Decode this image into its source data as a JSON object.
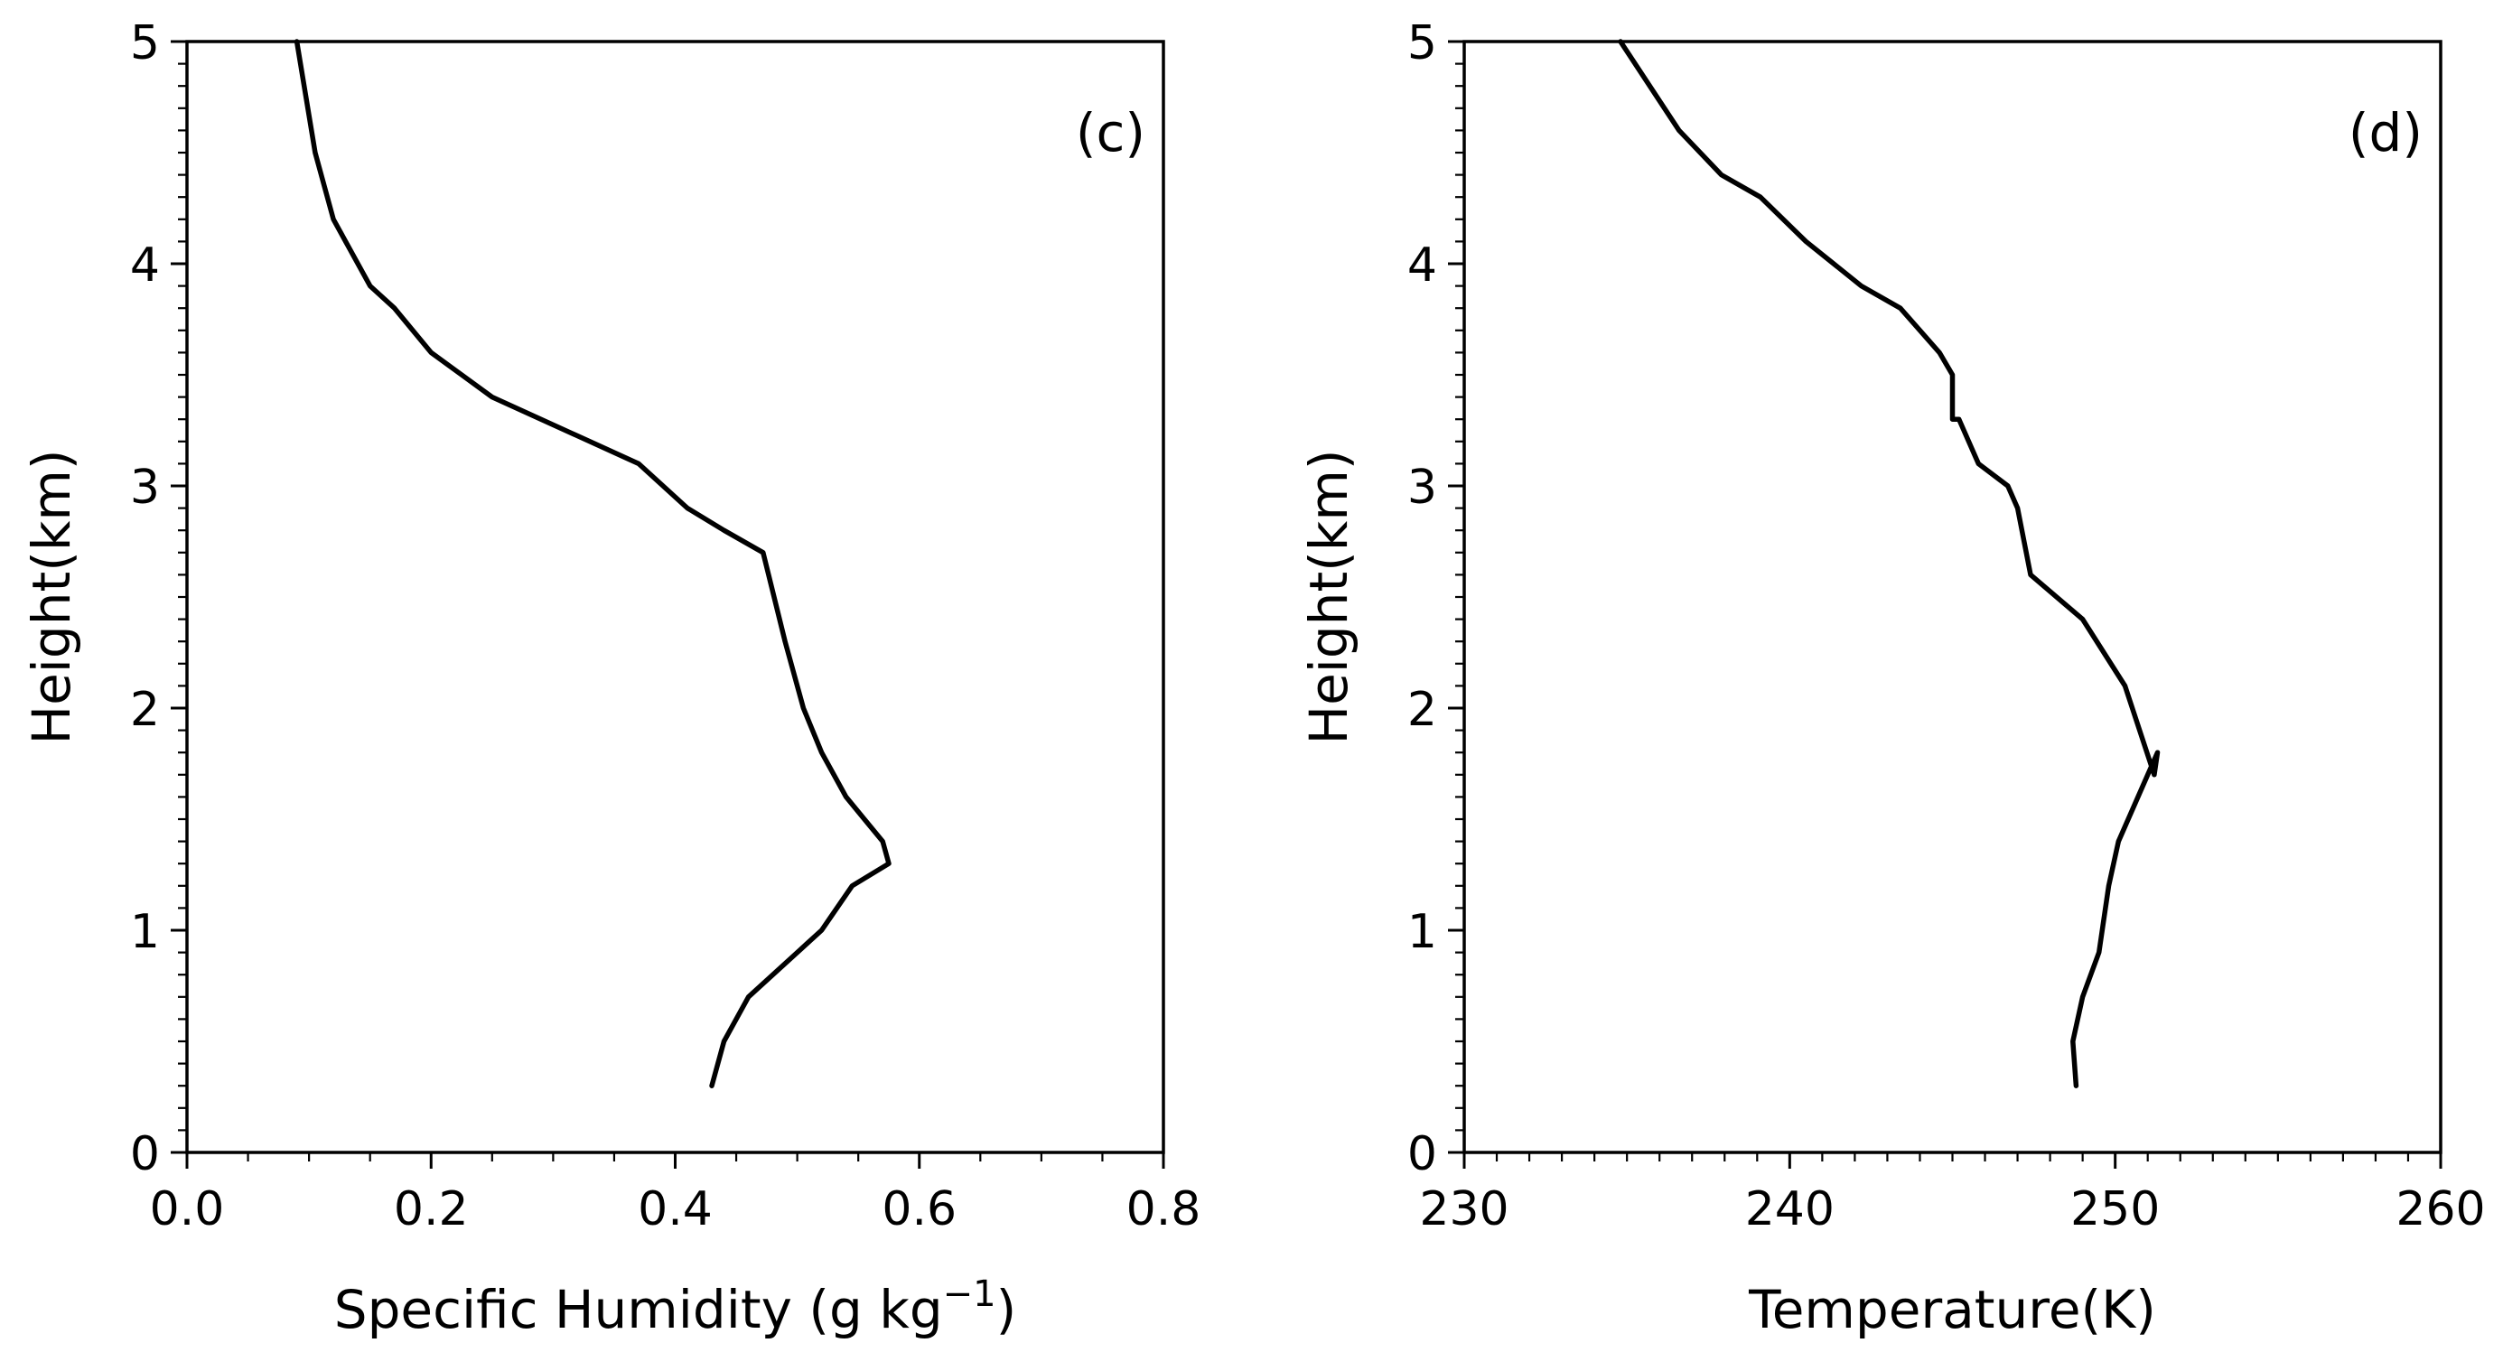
{
  "chart_data": [
    {
      "type": "line",
      "panel_label": "(c)",
      "xlabel": "Specific Humidity (g kg",
      "xlabel_sup": "−1",
      "xlabel_end": ")",
      "ylabel": "Height(km)",
      "xlim": [
        0.0,
        0.8
      ],
      "ylim": [
        0,
        5
      ],
      "x_major_ticks": [
        0.0,
        0.2,
        0.4,
        0.6,
        0.8
      ],
      "x_major_tick_labels": [
        "0.0",
        "0.2",
        "0.4",
        "0.6",
        "0.8"
      ],
      "x_minor_step": 0.05,
      "y_major_ticks": [
        0,
        1,
        2,
        3,
        4,
        5
      ],
      "y_major_tick_labels": [
        "0",
        "1",
        "2",
        "3",
        "4",
        "5"
      ],
      "y_minor_step": 0.1,
      "series": [
        {
          "name": "specific_humidity",
          "x": [
            0.43,
            0.44,
            0.46,
            0.5,
            0.52,
            0.545,
            0.575,
            0.57,
            0.555,
            0.54,
            0.52,
            0.505,
            0.49,
            0.472,
            0.44,
            0.41,
            0.37,
            0.33,
            0.29,
            0.25,
            0.2,
            0.17,
            0.15,
            0.12,
            0.105,
            0.09
          ],
          "y": [
            0.3,
            0.5,
            0.7,
            0.9,
            1.0,
            1.2,
            1.3,
            1.4,
            1.5,
            1.6,
            1.8,
            2.0,
            2.3,
            2.7,
            2.8,
            2.9,
            3.1,
            3.2,
            3.3,
            3.4,
            3.6,
            3.8,
            3.9,
            4.2,
            4.5,
            5.0
          ]
        }
      ]
    },
    {
      "type": "line",
      "panel_label": "(d)",
      "xlabel": "Temperature(K)",
      "ylabel": "Height(km)",
      "xlim": [
        230,
        260
      ],
      "ylim": [
        0,
        5
      ],
      "x_major_ticks": [
        230,
        240,
        250,
        260
      ],
      "x_major_tick_labels": [
        "230",
        "240",
        "250",
        "260"
      ],
      "x_minor_step": 1,
      "y_major_ticks": [
        0,
        1,
        2,
        3,
        4,
        5
      ],
      "y_major_tick_labels": [
        "0",
        "1",
        "2",
        "3",
        "4",
        "5"
      ],
      "y_minor_step": 0.1,
      "series": [
        {
          "name": "temperature",
          "x": [
            248.8,
            248.7,
            249.0,
            249.5,
            249.8,
            250.1,
            250.7,
            251.3,
            251.2,
            250.3,
            249.0,
            247.4,
            247.0,
            246.7,
            245.8,
            245.2,
            245.0,
            245.0,
            244.6,
            243.4,
            242.2,
            240.5,
            239.1,
            237.9,
            236.6,
            234.8
          ],
          "y": [
            0.3,
            0.5,
            0.7,
            0.9,
            1.2,
            1.4,
            1.6,
            1.8,
            1.7,
            2.1,
            2.4,
            2.6,
            2.9,
            3.0,
            3.1,
            3.3,
            3.3,
            3.5,
            3.6,
            3.8,
            3.9,
            4.1,
            4.3,
            4.4,
            4.6,
            5.0
          ]
        }
      ]
    }
  ]
}
